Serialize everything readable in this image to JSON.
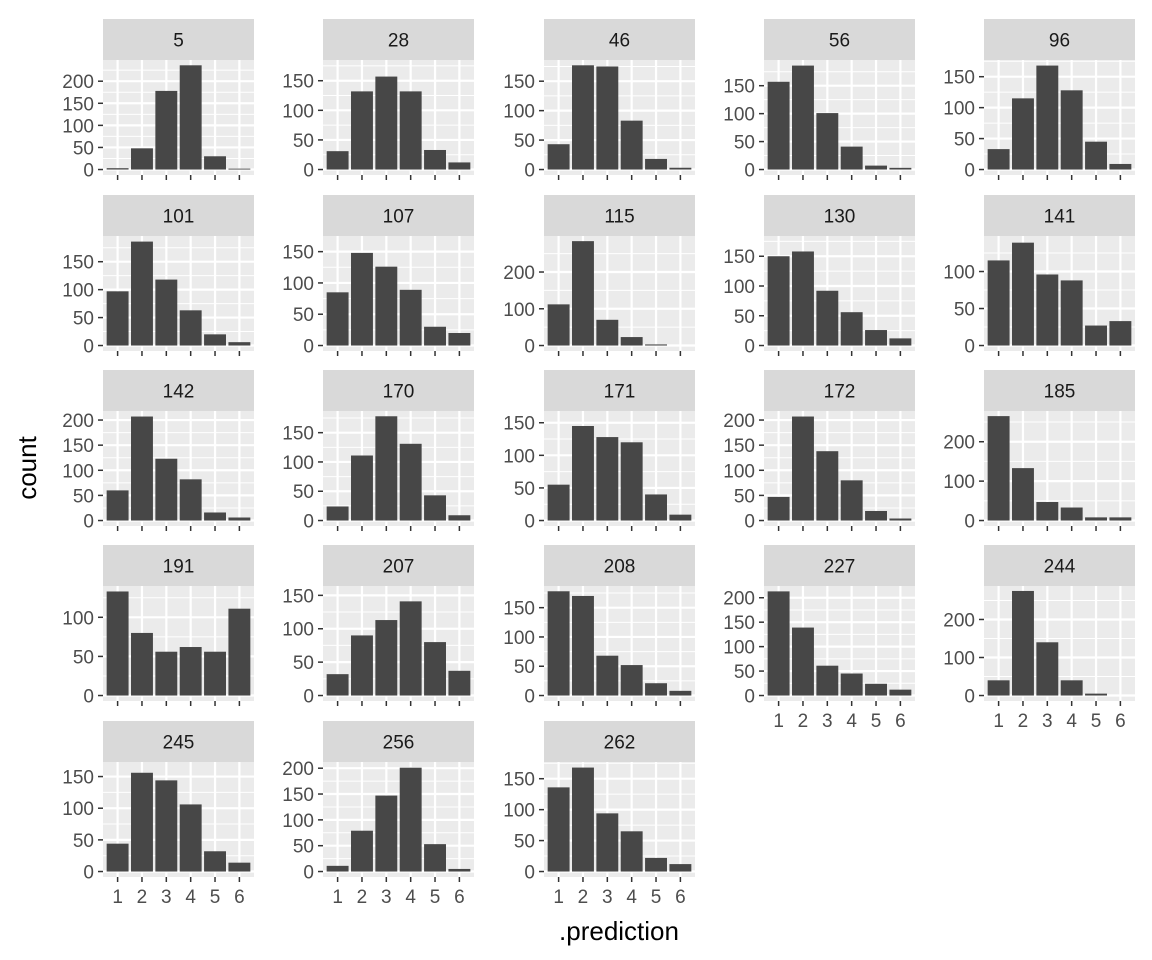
{
  "chart_data": {
    "type": "bar",
    "layout": "facet_wrap",
    "xlabel": ".prediction",
    "ylabel": "count",
    "x_categories": [
      "1",
      "2",
      "3",
      "4",
      "5",
      "6"
    ],
    "grid": true,
    "colors": {
      "bar": "#474747",
      "panel_background": "#EBEBEB",
      "grid": "#FFFFFF",
      "strip_background": "#D9D9D9",
      "text": "#1A1A1A",
      "tick_text": "#4D4D4D"
    },
    "panels": [
      {
        "label": "5",
        "values": [
          3,
          48,
          178,
          236,
          30,
          2
        ],
        "y_ticks": [
          0,
          50,
          100,
          150,
          200
        ],
        "ylim": [
          0,
          248
        ]
      },
      {
        "label": "28",
        "values": [
          31,
          132,
          157,
          132,
          33,
          12
        ],
        "y_ticks": [
          0,
          50,
          100,
          150
        ],
        "ylim": [
          0,
          185
        ]
      },
      {
        "label": "46",
        "values": [
          43,
          177,
          175,
          83,
          18,
          3
        ],
        "y_ticks": [
          0,
          50,
          100,
          150
        ],
        "ylim": [
          0,
          186
        ]
      },
      {
        "label": "56",
        "values": [
          157,
          186,
          101,
          41,
          7,
          3
        ],
        "y_ticks": [
          0,
          50,
          100,
          150
        ],
        "ylim": [
          0,
          196
        ]
      },
      {
        "label": "96",
        "values": [
          33,
          115,
          168,
          128,
          45,
          9
        ],
        "y_ticks": [
          0,
          50,
          100,
          150
        ],
        "ylim": [
          0,
          177
        ]
      },
      {
        "label": "101",
        "values": [
          97,
          186,
          118,
          63,
          20,
          6
        ],
        "y_ticks": [
          0,
          50,
          100,
          150
        ],
        "ylim": [
          0,
          196
        ]
      },
      {
        "label": "107",
        "values": [
          85,
          148,
          126,
          89,
          30,
          20
        ],
        "y_ticks": [
          0,
          50,
          100,
          150
        ],
        "ylim": [
          0,
          175
        ]
      },
      {
        "label": "115",
        "values": [
          112,
          284,
          70,
          23,
          3,
          0
        ],
        "y_ticks": [
          0,
          100,
          200
        ],
        "ylim": [
          0,
          298
        ]
      },
      {
        "label": "130",
        "values": [
          150,
          158,
          92,
          56,
          26,
          12
        ],
        "y_ticks": [
          0,
          50,
          100,
          150
        ],
        "ylim": [
          0,
          184
        ]
      },
      {
        "label": "141",
        "values": [
          115,
          139,
          96,
          88,
          27,
          33
        ],
        "y_ticks": [
          0,
          50,
          100
        ],
        "ylim": [
          0,
          148
        ]
      },
      {
        "label": "142",
        "values": [
          60,
          207,
          123,
          82,
          16,
          6
        ],
        "y_ticks": [
          0,
          50,
          100,
          150,
          200
        ],
        "ylim": [
          0,
          218
        ]
      },
      {
        "label": "170",
        "values": [
          24,
          111,
          178,
          131,
          43,
          9
        ],
        "y_ticks": [
          0,
          50,
          100,
          150
        ],
        "ylim": [
          0,
          187
        ]
      },
      {
        "label": "171",
        "values": [
          55,
          145,
          128,
          120,
          40,
          9
        ],
        "y_ticks": [
          0,
          50,
          100,
          150
        ],
        "ylim": [
          0,
          168
        ]
      },
      {
        "label": "172",
        "values": [
          47,
          207,
          138,
          80,
          19,
          4
        ],
        "y_ticks": [
          0,
          50,
          100,
          150,
          200
        ],
        "ylim": [
          0,
          218
        ]
      },
      {
        "label": "185",
        "values": [
          265,
          133,
          47,
          33,
          8,
          8
        ],
        "y_ticks": [
          0,
          100,
          200
        ],
        "ylim": [
          0,
          278
        ]
      },
      {
        "label": "191",
        "values": [
          133,
          80,
          56,
          62,
          56,
          111
        ],
        "y_ticks": [
          0,
          50,
          100
        ],
        "ylim": [
          0,
          140
        ]
      },
      {
        "label": "207",
        "values": [
          32,
          90,
          113,
          141,
          80,
          37
        ],
        "y_ticks": [
          0,
          50,
          100,
          150
        ],
        "ylim": [
          0,
          164
        ]
      },
      {
        "label": "208",
        "values": [
          178,
          170,
          68,
          52,
          21,
          8
        ],
        "y_ticks": [
          0,
          50,
          100,
          150
        ],
        "ylim": [
          0,
          187
        ]
      },
      {
        "label": "227",
        "values": [
          213,
          139,
          61,
          45,
          24,
          12
        ],
        "y_ticks": [
          0,
          50,
          100,
          150,
          200
        ],
        "ylim": [
          0,
          224
        ]
      },
      {
        "label": "244",
        "values": [
          40,
          275,
          140,
          40,
          5,
          0
        ],
        "y_ticks": [
          0,
          100,
          200
        ],
        "ylim": [
          0,
          288
        ]
      },
      {
        "label": "245",
        "values": [
          44,
          156,
          144,
          106,
          32,
          14
        ],
        "y_ticks": [
          0,
          50,
          100,
          150
        ],
        "ylim": [
          0,
          173
        ]
      },
      {
        "label": "256",
        "values": [
          11,
          79,
          147,
          201,
          53,
          5
        ],
        "y_ticks": [
          0,
          50,
          100,
          150,
          200
        ],
        "ylim": [
          0,
          212
        ]
      },
      {
        "label": "262",
        "values": [
          136,
          168,
          94,
          65,
          22,
          12
        ],
        "y_ticks": [
          0,
          50,
          100,
          150
        ],
        "ylim": [
          0,
          177
        ]
      }
    ]
  }
}
